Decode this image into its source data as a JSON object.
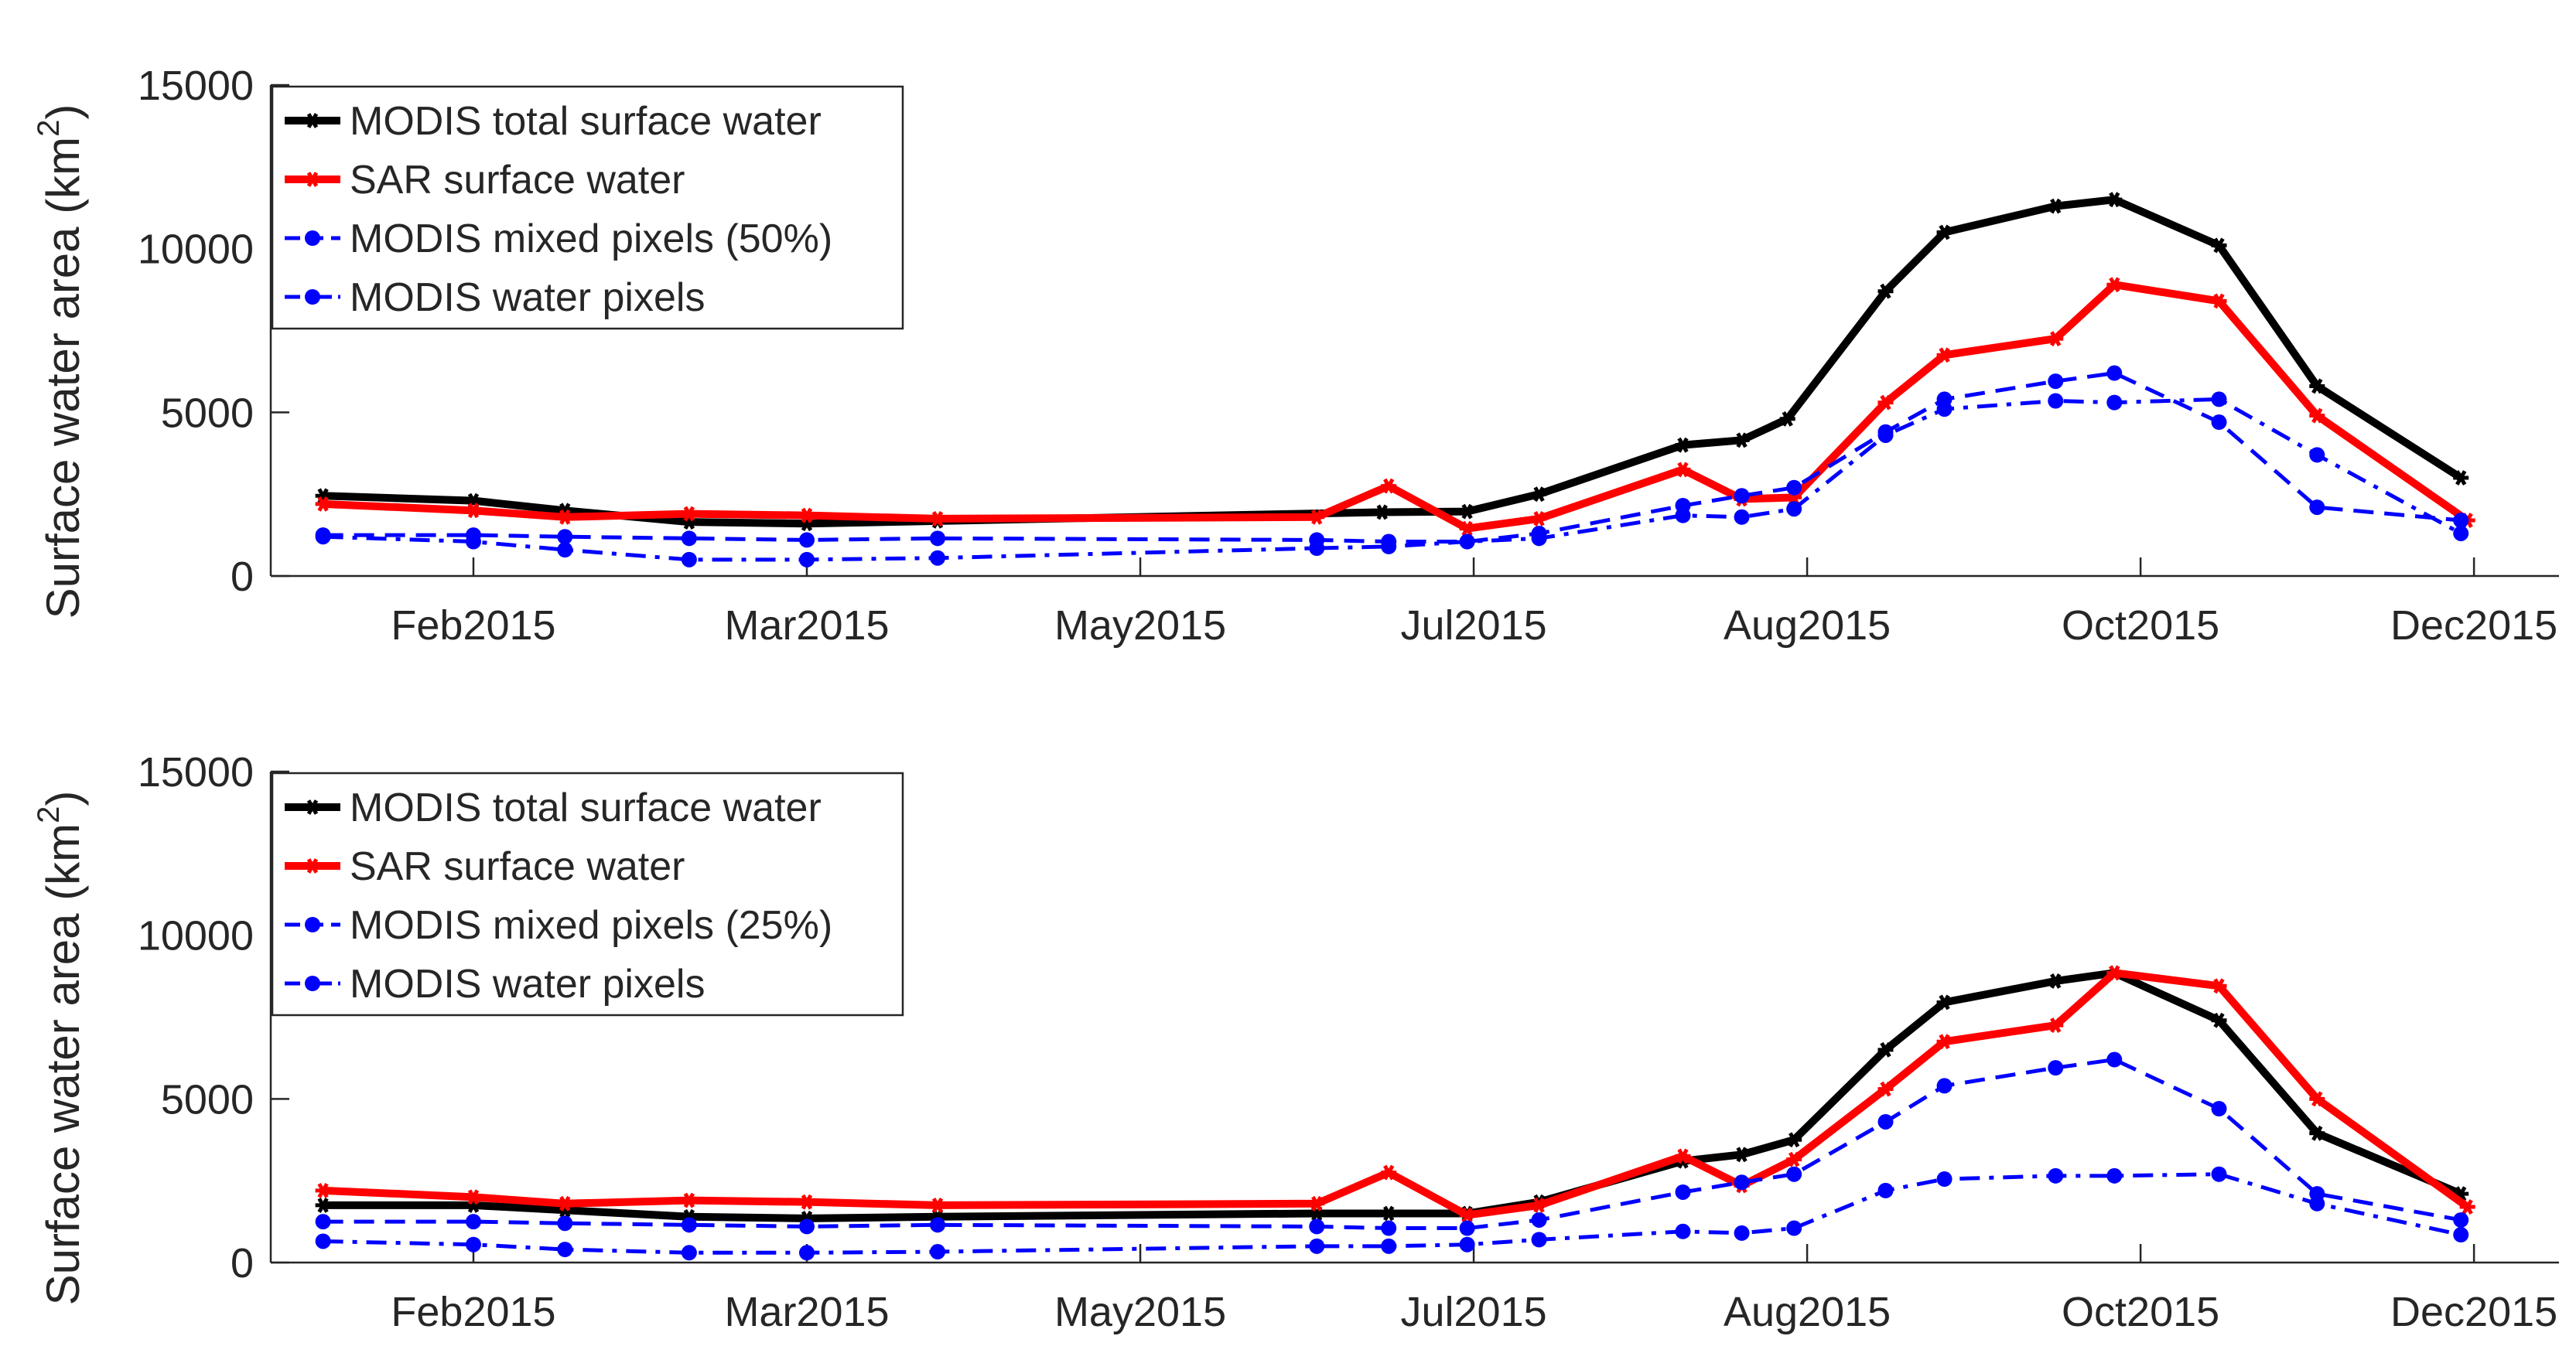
{
  "chart_data": [
    {
      "type": "line",
      "ylabel": "Surface water area (km",
      "ylabel_sup": "2",
      "ylabel_close": ")",
      "ylim": [
        0,
        15000
      ],
      "yticks": [
        0,
        5000,
        10000,
        15000
      ],
      "xlim": [
        0,
        350
      ],
      "xticks": [
        {
          "label": "Feb2015",
          "x": 31
        },
        {
          "label": "Mar2015",
          "x": 82
        },
        {
          "label": "May2015",
          "x": 133
        },
        {
          "label": "Jul2015",
          "x": 184
        },
        {
          "label": "Aug2015",
          "x": 235
        },
        {
          "label": "Oct2015",
          "x": 286
        },
        {
          "label": "Dec2015",
          "x": 337
        }
      ],
      "legend_position": "top-left",
      "series": [
        {
          "name": "MODIS total surface water",
          "color": "#000000",
          "style": "solid",
          "marker": "star",
          "points": [
            [
              8,
              2450
            ],
            [
              31,
              2300
            ],
            [
              45,
              2000
            ],
            [
              64,
              1650
            ],
            [
              82,
              1600
            ],
            [
              102,
              1680
            ],
            [
              170,
              1950
            ],
            [
              183,
              1970
            ],
            [
              194,
              2500
            ],
            [
              216,
              4000
            ],
            [
              225,
              4150
            ],
            [
              232,
              4800
            ],
            [
              247,
              8700
            ],
            [
              256,
              10500
            ],
            [
              273,
              11300
            ],
            [
              282,
              11500
            ],
            [
              298,
              10100
            ],
            [
              313,
              5800
            ],
            [
              335,
              3000
            ]
          ]
        },
        {
          "name": "SAR surface water",
          "color": "#ff0000",
          "style": "solid",
          "marker": "star",
          "points": [
            [
              8,
              2200
            ],
            [
              31,
              2000
            ],
            [
              45,
              1800
            ],
            [
              64,
              1900
            ],
            [
              82,
              1850
            ],
            [
              102,
              1750
            ],
            [
              160,
              1800
            ],
            [
              171,
              2750
            ],
            [
              183,
              1450
            ],
            [
              194,
              1750
            ],
            [
              216,
              3250
            ],
            [
              225,
              2350
            ],
            [
              233,
              2400
            ],
            [
              247,
              5300
            ],
            [
              256,
              6750
            ],
            [
              273,
              7250
            ],
            [
              282,
              8900
            ],
            [
              298,
              8400
            ],
            [
              313,
              4900
            ],
            [
              336,
              1700
            ]
          ]
        },
        {
          "name": "MODIS mixed pixels (50%)",
          "color": "#0000ff",
          "style": "dashed",
          "marker": "dot",
          "points": [
            [
              8,
              1250
            ],
            [
              31,
              1250
            ],
            [
              45,
              1200
            ],
            [
              64,
              1150
            ],
            [
              82,
              1100
            ],
            [
              102,
              1150
            ],
            [
              160,
              1100
            ],
            [
              171,
              1050
            ],
            [
              183,
              1050
            ],
            [
              194,
              1300
            ],
            [
              216,
              2150
            ],
            [
              225,
              2450
            ],
            [
              233,
              2700
            ],
            [
              247,
              4400
            ],
            [
              256,
              5400
            ],
            [
              273,
              5950
            ],
            [
              282,
              6200
            ],
            [
              298,
              4700
            ],
            [
              313,
              2100
            ],
            [
              335,
              1700
            ]
          ]
        },
        {
          "name": "MODIS water pixels",
          "color": "#0000ff",
          "style": "dashdot",
          "marker": "dot",
          "points": [
            [
              8,
              1200
            ],
            [
              31,
              1050
            ],
            [
              45,
              800
            ],
            [
              64,
              500
            ],
            [
              82,
              500
            ],
            [
              102,
              550
            ],
            [
              160,
              850
            ],
            [
              171,
              900
            ],
            [
              183,
              1050
            ],
            [
              194,
              1150
            ],
            [
              216,
              1850
            ],
            [
              225,
              1800
            ],
            [
              233,
              2050
            ],
            [
              247,
              4300
            ],
            [
              256,
              5100
            ],
            [
              273,
              5350
            ],
            [
              282,
              5300
            ],
            [
              298,
              5400
            ],
            [
              313,
              3700
            ],
            [
              335,
              1300
            ]
          ]
        }
      ]
    },
    {
      "type": "line",
      "ylabel": "Surface water area (km",
      "ylabel_sup": "2",
      "ylabel_close": ")",
      "ylim": [
        0,
        15000
      ],
      "yticks": [
        0,
        5000,
        10000,
        15000
      ],
      "xlim": [
        0,
        350
      ],
      "xticks": [
        {
          "label": "Feb2015",
          "x": 31
        },
        {
          "label": "Mar2015",
          "x": 82
        },
        {
          "label": "May2015",
          "x": 133
        },
        {
          "label": "Jul2015",
          "x": 184
        },
        {
          "label": "Aug2015",
          "x": 235
        },
        {
          "label": "Oct2015",
          "x": 286
        },
        {
          "label": "Dec2015",
          "x": 337
        }
      ],
      "legend_position": "top-left",
      "series": [
        {
          "name": "MODIS total surface water",
          "color": "#000000",
          "style": "solid",
          "marker": "star",
          "points": [
            [
              8,
              1750
            ],
            [
              31,
              1750
            ],
            [
              45,
              1600
            ],
            [
              64,
              1400
            ],
            [
              82,
              1350
            ],
            [
              102,
              1400
            ],
            [
              160,
              1500
            ],
            [
              171,
              1500
            ],
            [
              183,
              1500
            ],
            [
              194,
              1850
            ],
            [
              216,
              3100
            ],
            [
              225,
              3300
            ],
            [
              233,
              3750
            ],
            [
              247,
              6500
            ],
            [
              256,
              7950
            ],
            [
              273,
              8600
            ],
            [
              282,
              8850
            ],
            [
              298,
              7400
            ],
            [
              313,
              3950
            ],
            [
              335,
              2100
            ]
          ]
        },
        {
          "name": "SAR surface water",
          "color": "#ff0000",
          "style": "solid",
          "marker": "star",
          "points": [
            [
              8,
              2200
            ],
            [
              31,
              2000
            ],
            [
              45,
              1800
            ],
            [
              64,
              1900
            ],
            [
              82,
              1850
            ],
            [
              102,
              1750
            ],
            [
              160,
              1800
            ],
            [
              171,
              2750
            ],
            [
              183,
              1450
            ],
            [
              194,
              1750
            ],
            [
              216,
              3250
            ],
            [
              225,
              2350
            ],
            [
              233,
              3150
            ],
            [
              247,
              5300
            ],
            [
              256,
              6750
            ],
            [
              273,
              7250
            ],
            [
              282,
              8850
            ],
            [
              298,
              8450
            ],
            [
              313,
              5000
            ],
            [
              336,
              1700
            ]
          ]
        },
        {
          "name": "MODIS mixed pixels (25%)",
          "color": "#0000ff",
          "style": "dashed",
          "marker": "dot",
          "points": [
            [
              8,
              1250
            ],
            [
              31,
              1250
            ],
            [
              45,
              1200
            ],
            [
              64,
              1150
            ],
            [
              82,
              1100
            ],
            [
              102,
              1150
            ],
            [
              160,
              1100
            ],
            [
              171,
              1050
            ],
            [
              183,
              1050
            ],
            [
              194,
              1300
            ],
            [
              216,
              2150
            ],
            [
              225,
              2450
            ],
            [
              233,
              2700
            ],
            [
              247,
              4300
            ],
            [
              256,
              5400
            ],
            [
              273,
              5950
            ],
            [
              282,
              6200
            ],
            [
              298,
              4700
            ],
            [
              313,
              2100
            ],
            [
              335,
              1300
            ]
          ]
        },
        {
          "name": "MODIS water pixels",
          "color": "#0000ff",
          "style": "dashdot",
          "marker": "dot",
          "points": [
            [
              8,
              650
            ],
            [
              31,
              550
            ],
            [
              45,
              400
            ],
            [
              64,
              300
            ],
            [
              82,
              300
            ],
            [
              102,
              330
            ],
            [
              160,
              500
            ],
            [
              171,
              500
            ],
            [
              183,
              550
            ],
            [
              194,
              700
            ],
            [
              216,
              950
            ],
            [
              225,
              900
            ],
            [
              233,
              1050
            ],
            [
              247,
              2200
            ],
            [
              256,
              2550
            ],
            [
              273,
              2650
            ],
            [
              282,
              2650
            ],
            [
              298,
              2700
            ],
            [
              313,
              1800
            ],
            [
              335,
              850
            ]
          ]
        }
      ]
    }
  ]
}
